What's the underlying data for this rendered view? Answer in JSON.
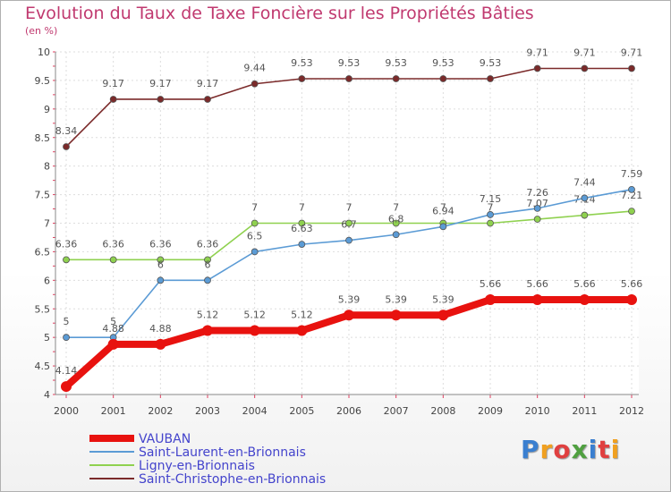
{
  "header": {
    "title": "Evolution du Taux de Taxe Foncière sur les Propriétés Bâties",
    "unit": "(en %)"
  },
  "logo": {
    "text": "Proxiti",
    "colors": [
      "#3a7fd0",
      "#f0a020",
      "#e04040",
      "#50a040",
      "#3a7fd0",
      "#e04040",
      "#f0a020"
    ]
  },
  "chart_data": {
    "type": "line",
    "title": "Evolution du Taux de Taxe Foncière sur les Propriétés Bâties",
    "ylabel": "(en %)",
    "xlabel": "",
    "ylim": [
      4,
      10
    ],
    "yticks": [
      "4",
      "4.5",
      "5",
      "5.5",
      "6",
      "6.5",
      "7",
      "7.5",
      "8",
      "8.5",
      "9",
      "9.5",
      "10"
    ],
    "x": [
      "2000",
      "2001",
      "2002",
      "2003",
      "2004",
      "2005",
      "2006",
      "2007",
      "2008",
      "2009",
      "2010",
      "2011",
      "2012"
    ],
    "series": [
      {
        "name": "VAUBAN",
        "color": "#e8120f",
        "values": [
          4.14,
          4.88,
          4.88,
          5.12,
          5.12,
          5.12,
          5.39,
          5.39,
          5.39,
          5.66,
          5.66,
          5.66,
          5.66
        ],
        "labels": [
          "4.14",
          "4.88",
          "4.88",
          "5.12",
          "5.12",
          "5.12",
          "5.39",
          "5.39",
          "5.39",
          "5.66",
          "5.66",
          "5.66",
          "5.66"
        ]
      },
      {
        "name": "Saint-Laurent-en-Brionnais",
        "color": "#5b9bd5",
        "values": [
          5,
          5,
          6,
          6,
          6.5,
          6.63,
          6.7,
          6.8,
          6.94,
          7.15,
          7.26,
          7.44,
          7.59
        ],
        "labels": [
          "5",
          "5",
          "6",
          "6",
          "6.5",
          "6.63",
          "6.7",
          "6.8",
          "6.94",
          "7.15",
          "7.26",
          "7.44",
          "7.59"
        ]
      },
      {
        "name": "Ligny-en-Brionnais",
        "color": "#8fd14f",
        "values": [
          6.36,
          6.36,
          6.36,
          6.36,
          7,
          7,
          7,
          7,
          7,
          7,
          7.07,
          7.14,
          7.21
        ],
        "labels": [
          "6.36",
          "6.36",
          "6.36",
          "6.36",
          "7",
          "7",
          "7",
          "7",
          "7",
          "7",
          "7.07",
          "7.14",
          "7.21"
        ]
      },
      {
        "name": "Saint-Christophe-en-Brionnais",
        "color": "#7b2a2a",
        "values": [
          8.34,
          9.17,
          9.17,
          9.17,
          9.44,
          9.53,
          9.53,
          9.53,
          9.53,
          9.53,
          9.71,
          9.71,
          9.71
        ],
        "labels": [
          "8.34",
          "9.17",
          "9.17",
          "9.17",
          "9.44",
          "9.53",
          "9.53",
          "9.53",
          "9.53",
          "9.53",
          "9.71",
          "9.71",
          "9.71"
        ]
      }
    ],
    "legend": [
      "VAUBAN",
      "Saint-Laurent-en-Brionnais",
      "Ligny-en-Brionnais",
      "Saint-Christophe-en-Brionnais"
    ]
  }
}
